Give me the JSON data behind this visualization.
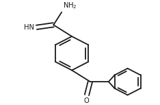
{
  "background": "#ffffff",
  "line_color": "#1a1a1a",
  "line_width": 1.3,
  "figsize": [
    2.34,
    1.53
  ],
  "dpi": 100,
  "text_color": "#1a1a1a",
  "font_size": 7.2,
  "sub_font_size": 5.5,
  "xlim": [
    0,
    2.34
  ],
  "ylim": [
    0,
    1.53
  ]
}
